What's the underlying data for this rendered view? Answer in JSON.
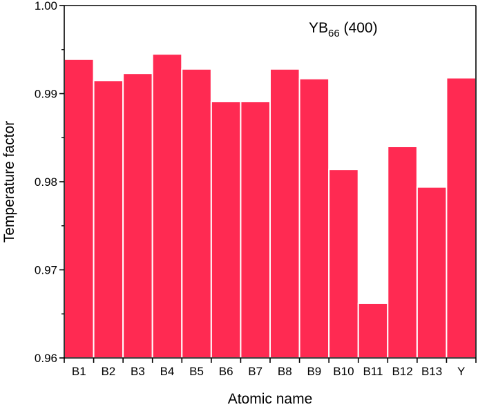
{
  "chart_data": {
    "type": "bar",
    "title": "",
    "xlabel": "Atomic name",
    "ylabel": "Temperature factor",
    "annotation": {
      "main": "YB",
      "subscript": "66",
      "suffix": " (400)",
      "placement": "top-right"
    },
    "categories": [
      "B1",
      "B2",
      "B3",
      "B4",
      "B5",
      "B6",
      "B7",
      "B8",
      "B9",
      "B10",
      "B11",
      "B12",
      "B13",
      "Y"
    ],
    "values": [
      0.9939,
      0.9915,
      0.9923,
      0.9945,
      0.9928,
      0.9891,
      0.9891,
      0.9928,
      0.9917,
      0.9814,
      0.9662,
      0.984,
      0.9794,
      0.9918
    ],
    "ylim": [
      0.96,
      1.0
    ],
    "yticks": [
      0.96,
      0.97,
      0.98,
      0.99
    ],
    "ytick_labels": [
      "0.96",
      "0.97",
      "0.98",
      "0.99"
    ],
    "ytop_label": "1.00",
    "grid": false,
    "colors": {
      "bar_fill": "#ff2a52",
      "bar_edge": "#ffffff",
      "axis": "#000000"
    }
  }
}
